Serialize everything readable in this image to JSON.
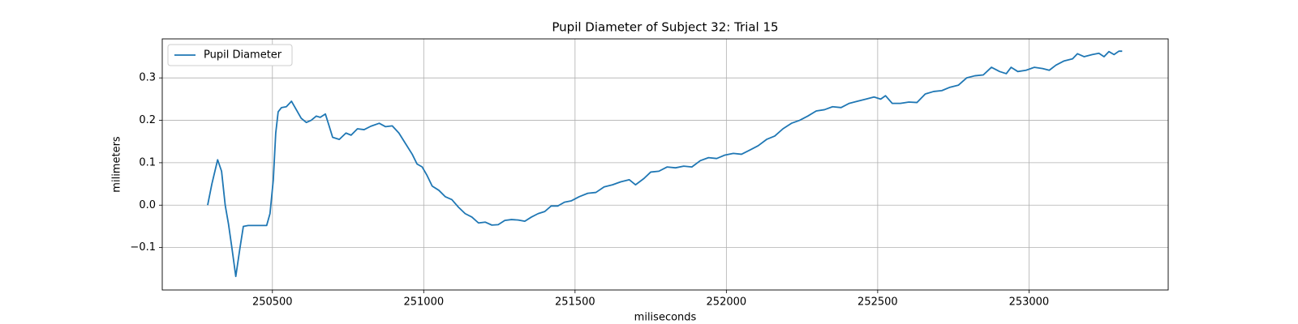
{
  "chart_data": {
    "type": "line",
    "title": "Pupil Diameter of Subject 32: Trial 15",
    "x_label": "miliseconds",
    "y_label": "milimeters",
    "x": [
      250286,
      250300,
      250319,
      250332,
      250344,
      250355,
      250366,
      250379,
      250393,
      250404,
      250420,
      250481,
      250492,
      250503,
      250511,
      250519,
      250530,
      250546,
      250563,
      250579,
      250595,
      250612,
      250628,
      250645,
      250658,
      250675,
      250686,
      250699,
      250721,
      250743,
      250760,
      250781,
      250803,
      250825,
      250853,
      250874,
      250896,
      250918,
      250940,
      250962,
      250978,
      250995,
      251011,
      251028,
      251050,
      251071,
      251093,
      251115,
      251137,
      251159,
      251181,
      251203,
      251225,
      251246,
      251268,
      251290,
      251312,
      251334,
      251356,
      251378,
      251400,
      251421,
      251443,
      251465,
      251487,
      251514,
      251542,
      251569,
      251596,
      251624,
      251651,
      251679,
      251700,
      251728,
      251750,
      251777,
      251804,
      251832,
      251859,
      251886,
      251914,
      251941,
      251968,
      251995,
      252023,
      252050,
      252078,
      252105,
      252133,
      252160,
      252187,
      252215,
      252242,
      252269,
      252297,
      252324,
      252351,
      252379,
      252406,
      252433,
      252461,
      252488,
      252510,
      252526,
      252548,
      252575,
      252603,
      252630,
      252657,
      252685,
      252712,
      252739,
      252767,
      252794,
      252821,
      252849,
      252876,
      252903,
      252925,
      252941,
      252963,
      252990,
      253018,
      253045,
      253067,
      253089,
      253116,
      253144,
      253160,
      253182,
      253209,
      253231,
      253248,
      253264,
      253281,
      253297,
      253308
    ],
    "series": [
      {
        "name": "Pupil Diameter",
        "color": "#1f77b4",
        "values": [
          0.0,
          0.05,
          0.107,
          0.08,
          0.0,
          -0.045,
          -0.1,
          -0.168,
          -0.1,
          -0.05,
          -0.048,
          -0.048,
          -0.02,
          0.06,
          0.17,
          0.22,
          0.23,
          0.232,
          0.245,
          0.225,
          0.205,
          0.195,
          0.2,
          0.21,
          0.207,
          0.215,
          0.19,
          0.16,
          0.155,
          0.17,
          0.165,
          0.18,
          0.178,
          0.186,
          0.193,
          0.185,
          0.187,
          0.17,
          0.145,
          0.12,
          0.097,
          0.09,
          0.07,
          0.045,
          0.035,
          0.02,
          0.013,
          -0.005,
          -0.02,
          -0.028,
          -0.042,
          -0.04,
          -0.047,
          -0.046,
          -0.036,
          -0.034,
          -0.035,
          -0.038,
          -0.028,
          -0.02,
          -0.015,
          -0.002,
          -0.002,
          0.007,
          0.01,
          0.02,
          0.028,
          0.03,
          0.043,
          0.048,
          0.055,
          0.06,
          0.048,
          0.063,
          0.078,
          0.08,
          0.09,
          0.088,
          0.092,
          0.09,
          0.105,
          0.112,
          0.11,
          0.118,
          0.122,
          0.12,
          0.13,
          0.14,
          0.155,
          0.163,
          0.18,
          0.193,
          0.2,
          0.21,
          0.222,
          0.225,
          0.232,
          0.23,
          0.24,
          0.245,
          0.25,
          0.255,
          0.25,
          0.258,
          0.24,
          0.24,
          0.243,
          0.242,
          0.262,
          0.268,
          0.27,
          0.278,
          0.283,
          0.3,
          0.305,
          0.307,
          0.325,
          0.315,
          0.31,
          0.325,
          0.315,
          0.318,
          0.325,
          0.322,
          0.318,
          0.33,
          0.34,
          0.345,
          0.357,
          0.35,
          0.355,
          0.358,
          0.35,
          0.362,
          0.355,
          0.363,
          0.363
        ]
      }
    ],
    "xlim": [
      250136,
      253460
    ],
    "ylim": [
      -0.2,
      0.392
    ],
    "xticks": [
      250500,
      251000,
      251500,
      252000,
      252500,
      253000
    ],
    "yticks": [
      {
        "value": -0.1,
        "label": "−0.1"
      },
      {
        "value": 0,
        "label": "0.0"
      },
      0.1,
      0.2,
      0.3
    ],
    "grid": true,
    "legend": "upper-left"
  }
}
